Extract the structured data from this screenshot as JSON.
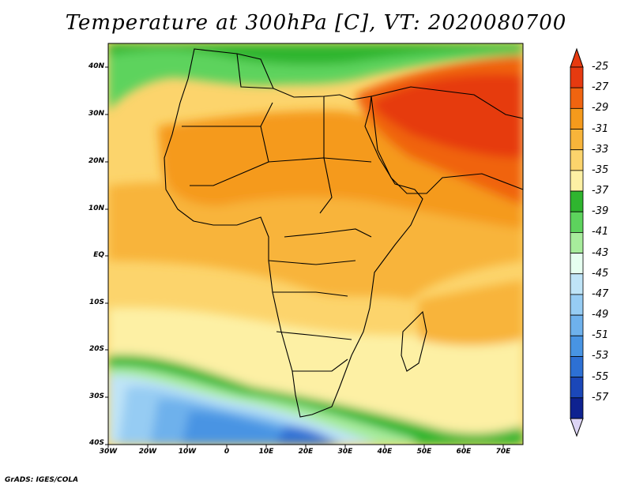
{
  "title": "Temperature at 300hPa [C], VT: 2020080700",
  "credit": "GrADS: IGES/COLA",
  "map": {
    "projection": "latlon",
    "lon_range": [
      -30,
      75
    ],
    "lat_range": [
      -40,
      45
    ],
    "lat_labels": [
      "40N",
      "30N",
      "20N",
      "10N",
      "EQ",
      "10S",
      "20S",
      "30S",
      "40S"
    ],
    "lon_labels": [
      "30W",
      "20W",
      "10W",
      "0",
      "10E",
      "20E",
      "30E",
      "40E",
      "50E",
      "60E",
      "70E"
    ],
    "regions": [
      "Middle East / Arabia / Iran warm core (-25 to -27)",
      "Sahara and Sahel (-29 to -31)",
      "Equatorial Africa (-31 to -33)",
      "Southern Ocean cold band (-41 to -53)",
      "Mediterranean / Europe (-37 to -41)"
    ]
  },
  "colorbar": {
    "labels": [
      "-25",
      "-27",
      "-29",
      "-31",
      "-33",
      "-35",
      "-37",
      "-39",
      "-41",
      "-43",
      "-45",
      "-47",
      "-49",
      "-51",
      "-53",
      "-55",
      "-57"
    ],
    "colors": [
      "#e63a10",
      "#f06410",
      "#f59a1c",
      "#f8b43a",
      "#fcd46c",
      "#fdf0a4",
      "#2fb52f",
      "#5dd35d",
      "#a7ec9c",
      "#e6fff0",
      "#bfe4f7",
      "#96ccf3",
      "#6eb1ec",
      "#4894e3",
      "#2d70d4",
      "#1b47b8",
      "#0e2290"
    ],
    "extend_low_color": "#dcd4f4"
  }
}
